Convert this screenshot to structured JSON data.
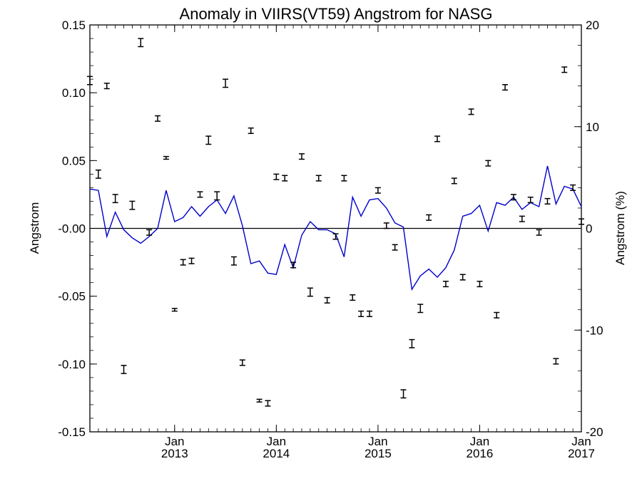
{
  "chart_data": {
    "type": "line",
    "title": "Anomaly in VIIRS(VT59) Angstrom for NASG",
    "ylabel_left": "Angstrom",
    "ylabel_right": "Angstrom (%)",
    "ylim_left": [
      -0.15,
      0.15
    ],
    "ylim_right": [
      -20,
      20
    ],
    "xlim": [
      "2012-03",
      "2017-01"
    ],
    "y_ticks_left": [
      "0.15",
      "0.10",
      "0.05",
      "-0.00",
      "-0.05",
      "-0.10",
      "-0.15"
    ],
    "y_ticks_left_values": [
      0.15,
      0.1,
      0.05,
      0.0,
      -0.05,
      -0.1,
      -0.15
    ],
    "y_ticks_right": [
      "20",
      "10",
      "0",
      "-10",
      "-20"
    ],
    "y_ticks_right_values": [
      20,
      10,
      0,
      -10,
      -20
    ],
    "x_ticks": [
      {
        "month": "Jan",
        "year": "2013",
        "date": "2013-01"
      },
      {
        "month": "Jan",
        "year": "2014",
        "date": "2014-01"
      },
      {
        "month": "Jan",
        "year": "2015",
        "date": "2015-01"
      },
      {
        "month": "Jan",
        "year": "2016",
        "date": "2016-01"
      },
      {
        "month": "Jan",
        "year": "2017",
        "date": "2017-01"
      }
    ],
    "zero_line": true,
    "grid": false,
    "line_color": "#0000cc",
    "series": [
      {
        "kind": "line",
        "x": [
          "2012-03",
          "2012-04",
          "2012-05",
          "2012-06",
          "2012-07",
          "2012-08",
          "2012-09",
          "2012-10",
          "2012-11",
          "2012-12",
          "2013-01",
          "2013-02",
          "2013-03",
          "2013-04",
          "2013-05",
          "2013-06",
          "2013-07",
          "2013-08",
          "2013-09",
          "2013-10",
          "2013-11",
          "2013-12",
          "2014-01",
          "2014-02",
          "2014-03",
          "2014-04",
          "2014-05",
          "2014-06",
          "2014-07",
          "2014-08",
          "2014-09",
          "2014-10",
          "2014-11",
          "2014-12",
          "2015-01",
          "2015-02",
          "2015-03",
          "2015-04",
          "2015-05",
          "2015-06",
          "2015-07",
          "2015-08",
          "2015-09",
          "2015-10",
          "2015-11",
          "2015-12",
          "2016-01",
          "2016-02",
          "2016-03",
          "2016-04",
          "2016-05",
          "2016-06",
          "2016-07",
          "2016-08",
          "2016-09",
          "2016-10",
          "2016-11",
          "2016-12",
          "2017-01"
        ],
        "y": [
          0.029,
          0.028,
          -0.006,
          0.012,
          -0.001,
          -0.007,
          -0.011,
          -0.006,
          0.0,
          0.028,
          0.005,
          0.008,
          0.016,
          0.009,
          0.016,
          0.021,
          0.011,
          0.024,
          0.002,
          -0.026,
          -0.024,
          -0.033,
          -0.034,
          -0.012,
          -0.029,
          -0.005,
          0.005,
          -0.001,
          -0.001,
          -0.004,
          -0.021,
          0.023,
          0.009,
          0.021,
          0.022,
          0.015,
          0.004,
          0.001,
          -0.045,
          -0.035,
          -0.03,
          -0.036,
          -0.029,
          -0.016,
          0.009,
          0.011,
          0.017,
          -0.002,
          0.019,
          0.017,
          0.023,
          0.014,
          0.019,
          0.016,
          0.046,
          0.018,
          0.031,
          0.029,
          0.016
        ]
      },
      {
        "kind": "errorbar",
        "x": [
          "2012-03",
          "2012-04",
          "2012-05",
          "2012-06",
          "2012-07",
          "2012-08",
          "2012-09",
          "2012-10",
          "2012-11",
          "2012-12",
          "2013-01",
          "2013-02",
          "2013-03",
          "2013-04",
          "2013-05",
          "2013-06",
          "2013-07",
          "2013-08",
          "2013-09",
          "2013-10",
          "2013-11",
          "2013-12",
          "2014-01",
          "2014-02",
          "2014-03",
          "2014-04",
          "2014-05",
          "2014-06",
          "2014-07",
          "2014-08",
          "2014-09",
          "2014-10",
          "2014-11",
          "2014-12",
          "2015-01",
          "2015-02",
          "2015-03",
          "2015-04",
          "2015-05",
          "2015-06",
          "2015-07",
          "2015-08",
          "2015-09",
          "2015-10",
          "2015-11",
          "2015-12",
          "2016-01",
          "2016-02",
          "2016-03",
          "2016-04",
          "2016-05",
          "2016-06",
          "2016-07",
          "2016-08",
          "2016-09",
          "2016-10",
          "2016-11",
          "2016-12",
          "2017-01"
        ],
        "y": [
          0.109,
          0.04,
          0.105,
          0.022,
          -0.104,
          0.017,
          0.137,
          -0.003,
          0.081,
          0.052,
          -0.06,
          -0.025,
          -0.024,
          0.025,
          0.065,
          0.024,
          0.107,
          -0.024,
          -0.099,
          0.072,
          -0.127,
          -0.129,
          0.038,
          0.037,
          -0.027,
          0.053,
          -0.047,
          0.037,
          -0.053,
          -0.006,
          0.037,
          -0.051,
          -0.063,
          -0.063,
          0.028,
          0.002,
          -0.014,
          -0.122,
          -0.085,
          -0.059,
          0.008,
          0.066,
          -0.041,
          0.035,
          -0.036,
          0.086,
          -0.041,
          0.048,
          -0.064,
          0.104,
          0.023,
          0.007,
          0.021,
          -0.003,
          0.02,
          -0.098,
          0.117,
          0.03,
          0.005
        ],
        "err": [
          0.003,
          0.003,
          0.002,
          0.003,
          0.003,
          0.003,
          0.003,
          0.002,
          0.002,
          0.001,
          0.001,
          0.002,
          0.002,
          0.002,
          0.003,
          0.003,
          0.003,
          0.003,
          0.002,
          0.002,
          0.001,
          0.002,
          0.002,
          0.002,
          0.002,
          0.002,
          0.003,
          0.002,
          0.002,
          0.002,
          0.002,
          0.002,
          0.002,
          0.002,
          0.002,
          0.002,
          0.002,
          0.003,
          0.003,
          0.003,
          0.002,
          0.002,
          0.002,
          0.002,
          0.002,
          0.002,
          0.002,
          0.002,
          0.002,
          0.002,
          0.002,
          0.002,
          0.002,
          0.002,
          0.002,
          0.002,
          0.002,
          0.002,
          0.002
        ]
      }
    ]
  }
}
